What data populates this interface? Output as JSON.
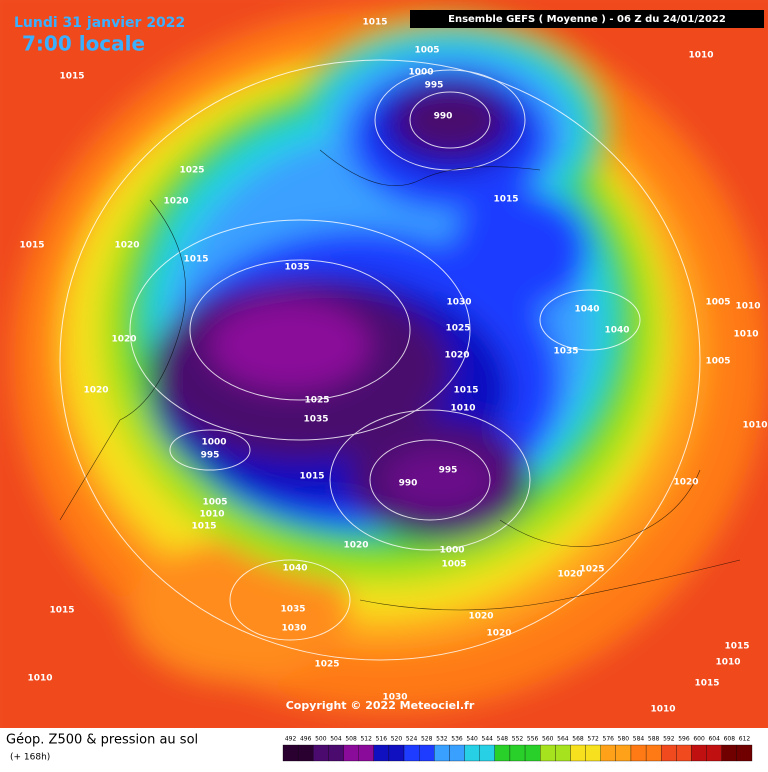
{
  "header": {
    "date": "Lundi 31 janvier 2022",
    "time": "7:00 locale",
    "banner": "Ensemble GEFS  ( Moyenne )  -  06 Z du 24/01/2022"
  },
  "map": {
    "isobar_labels": [
      1015,
      1005,
      1000,
      995,
      990,
      1015,
      1010,
      1025,
      1020,
      1015,
      1015,
      1020,
      1015,
      1035,
      1030,
      1005,
      1010,
      1040,
      1025,
      1040,
      1010,
      1020,
      1035,
      1020,
      1005,
      1020,
      1015,
      1025,
      1010,
      1035,
      1010,
      1000,
      995,
      995,
      990,
      1015,
      1020,
      1005,
      1010,
      1015,
      1020,
      1000,
      1005,
      1025,
      1020,
      1040,
      1015,
      1035,
      1030,
      1020,
      1020,
      1015,
      1010,
      1025,
      1010,
      1015,
      1030,
      1010
    ]
  },
  "copyright": "Copyright © 2022 Meteociel.fr",
  "footer": {
    "title": "Géop. Z500 & pression au sol",
    "lead": "(+ 168h)"
  },
  "colorbar": {
    "labels": [
      492,
      496,
      500,
      504,
      508,
      512,
      516,
      520,
      524,
      528,
      532,
      536,
      540,
      544,
      548,
      552,
      556,
      560,
      564,
      568,
      572,
      576,
      580,
      584,
      588,
      592,
      596,
      600,
      604,
      608,
      612
    ]
  }
}
